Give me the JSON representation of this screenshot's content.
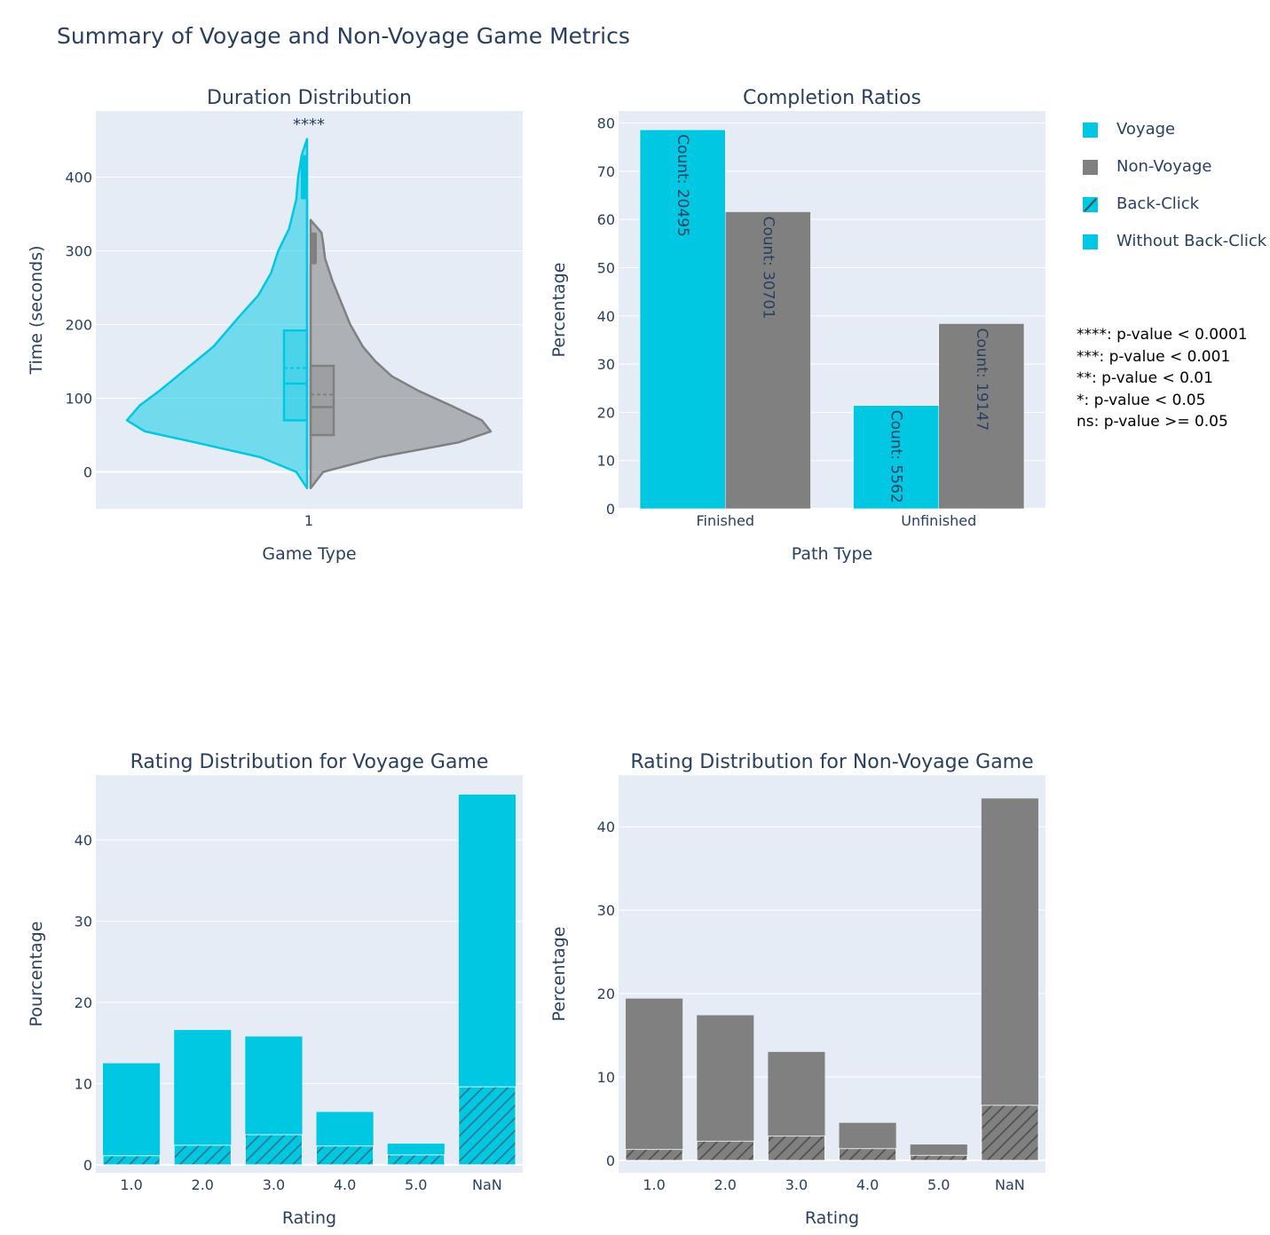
{
  "title": "Summary of Voyage and Non-Voyage Game Metrics",
  "colors": {
    "voyage": "#00c8e3",
    "non_voyage": "#808080",
    "plot_bg": "#e5ecf6",
    "grid": "#ffffff",
    "text": "#2a3f5f"
  },
  "legend": {
    "items": [
      {
        "label": "Voyage",
        "swatch": "solid-cyan"
      },
      {
        "label": "Non-Voyage",
        "swatch": "solid-grey"
      },
      {
        "label": "Back-Click",
        "swatch": "hatched-cyan"
      },
      {
        "label": "Without Back-Click",
        "swatch": "solid-cyan"
      }
    ]
  },
  "significance_notes": [
    "****: p-value < 0.0001",
    "***: p-value < 0.001",
    "**: p-value < 0.01",
    "*: p-value < 0.05",
    "ns: p-value >= 0.05"
  ],
  "chart_data": [
    {
      "type": "violin",
      "title": "Duration Distribution",
      "xlabel": "Game Type",
      "ylabel": "Time (seconds)",
      "categories": [
        "1"
      ],
      "ylim": [
        -50,
        490
      ],
      "yticks": [
        0,
        100,
        200,
        300,
        400
      ],
      "annotation": "****",
      "series": [
        {
          "name": "Voyage",
          "side": "negative",
          "q1": 70,
          "median": 120,
          "mean": 141,
          "q3": 192,
          "whisker_low": 5,
          "whisker_high": 370,
          "outlier_low": 370,
          "outlier_high": 430,
          "kde_min": -22,
          "kde_max": 452,
          "density": [
            [
              -22,
              0.0
            ],
            [
              0,
              0.06
            ],
            [
              20,
              0.26
            ],
            [
              40,
              0.62
            ],
            [
              55,
              0.9
            ],
            [
              70,
              1.0
            ],
            [
              90,
              0.93
            ],
            [
              110,
              0.82
            ],
            [
              130,
              0.72
            ],
            [
              150,
              0.62
            ],
            [
              170,
              0.52
            ],
            [
              190,
              0.45
            ],
            [
              210,
              0.38
            ],
            [
              240,
              0.27
            ],
            [
              270,
              0.2
            ],
            [
              300,
              0.16
            ],
            [
              330,
              0.1
            ],
            [
              350,
              0.08
            ],
            [
              370,
              0.06
            ],
            [
              400,
              0.05
            ],
            [
              430,
              0.03
            ],
            [
              452,
              0.0
            ]
          ]
        },
        {
          "name": "Non-Voyage",
          "side": "positive",
          "q1": 50,
          "median": 88,
          "mean": 105,
          "q3": 144,
          "whisker_low": 3,
          "whisker_high": 282,
          "outlier_low": 282,
          "outlier_high": 325,
          "kde_min": -22,
          "kde_max": 342,
          "density": [
            [
              -22,
              0.0
            ],
            [
              0,
              0.07
            ],
            [
              20,
              0.38
            ],
            [
              40,
              0.82
            ],
            [
              55,
              1.0
            ],
            [
              70,
              0.95
            ],
            [
              90,
              0.78
            ],
            [
              110,
              0.6
            ],
            [
              130,
              0.45
            ],
            [
              150,
              0.36
            ],
            [
              170,
              0.29
            ],
            [
              200,
              0.22
            ],
            [
              230,
              0.17
            ],
            [
              260,
              0.12
            ],
            [
              290,
              0.08
            ],
            [
              310,
              0.07
            ],
            [
              325,
              0.06
            ],
            [
              342,
              0.0
            ]
          ]
        }
      ]
    },
    {
      "type": "bar",
      "title": "Completion Ratios",
      "xlabel": "Path Type",
      "ylabel": "Percentage",
      "categories": [
        "Finished",
        "Unfinished"
      ],
      "ylim": [
        0,
        82.5
      ],
      "yticks": [
        0,
        10,
        20,
        30,
        40,
        50,
        60,
        70,
        80
      ],
      "series": [
        {
          "name": "Voyage",
          "values": [
            78.6,
            21.4
          ],
          "labels": [
            "Count: 20495",
            "Count: 5562"
          ]
        },
        {
          "name": "Non-Voyage",
          "values": [
            61.6,
            38.4
          ],
          "labels": [
            "Count: 30701",
            "Count: 19147"
          ]
        }
      ]
    },
    {
      "type": "bar",
      "title": "Rating Distribution for Voyage Game",
      "xlabel": "Rating",
      "ylabel": "Pourcentage",
      "categories": [
        "1.0",
        "2.0",
        "3.0",
        "4.0",
        "5.0",
        "NaN"
      ],
      "ylim": [
        -1,
        48
      ],
      "yticks": [
        0,
        10,
        20,
        30,
        40
      ],
      "series": [
        {
          "name": "Without Back-Click",
          "values": [
            12.5,
            16.6,
            15.8,
            6.5,
            2.6,
            45.6
          ]
        },
        {
          "name": "Back-Click",
          "values": [
            1.1,
            2.4,
            3.7,
            2.3,
            1.2,
            9.6
          ]
        }
      ]
    },
    {
      "type": "bar",
      "title": "Rating Distribution for Non-Voyage Game",
      "xlabel": "Rating",
      "ylabel": "Percentage",
      "categories": [
        "1.0",
        "2.0",
        "3.0",
        "4.0",
        "5.0",
        "NaN"
      ],
      "ylim": [
        -1.5,
        46.2
      ],
      "yticks": [
        0,
        10,
        20,
        30,
        40
      ],
      "series": [
        {
          "name": "Without Back-Click",
          "values": [
            19.4,
            17.4,
            13.0,
            4.5,
            1.9,
            43.4
          ]
        },
        {
          "name": "Back-Click",
          "values": [
            1.3,
            2.3,
            2.9,
            1.4,
            0.6,
            6.6
          ]
        }
      ]
    }
  ]
}
